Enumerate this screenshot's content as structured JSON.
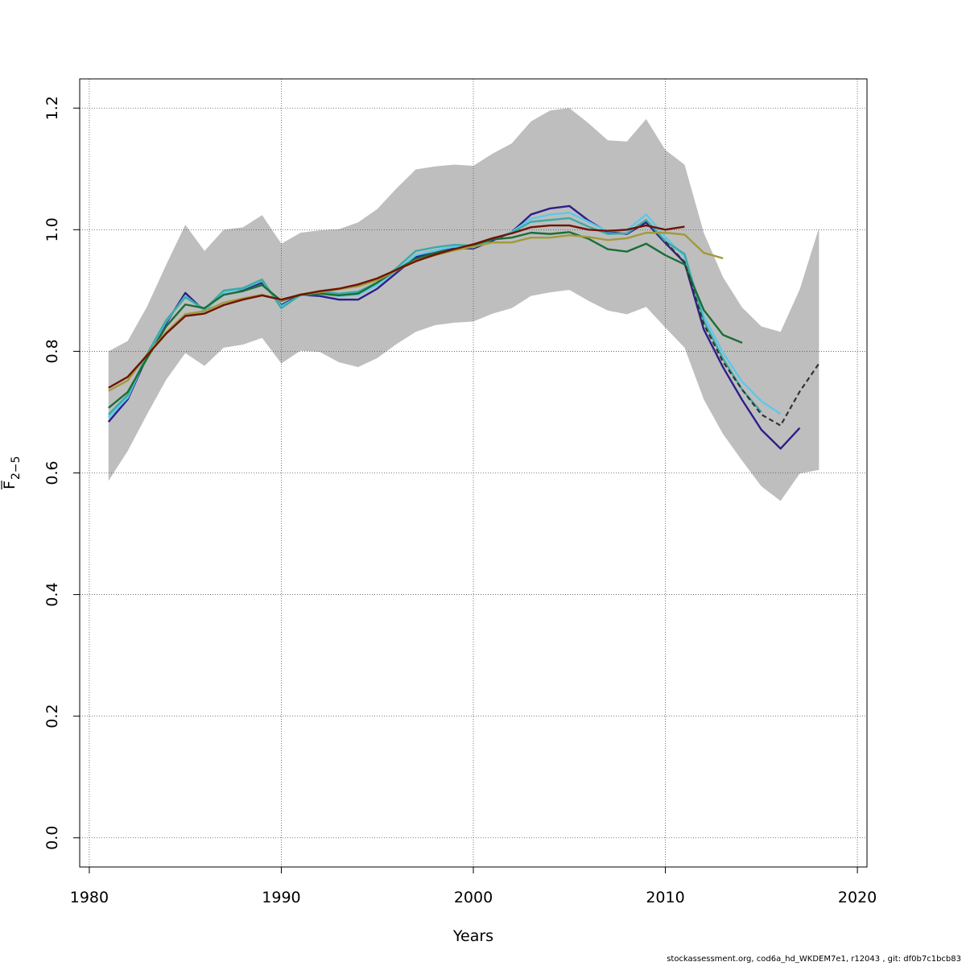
{
  "chart_data": {
    "type": "line",
    "xlabel": "Years",
    "ylabel": "F",
    "ylabel_subscript": "2−5",
    "xlim": [
      1979.5,
      2020.5
    ],
    "ylim": [
      -0.048,
      1.248
    ],
    "x_ticks": [
      1980,
      1990,
      2000,
      2010,
      2020
    ],
    "y_ticks": [
      0.0,
      0.2,
      0.4,
      0.6,
      0.8,
      1.0,
      1.2
    ],
    "y_tick_labels": [
      "0.0",
      "0.2",
      "0.4",
      "0.6",
      "0.8",
      "1.0",
      "1.2"
    ],
    "grid": true,
    "confidence_band": {
      "color": "#bebebe",
      "x": [
        1981,
        1982,
        1983,
        1984,
        1985,
        1986,
        1987,
        1988,
        1989,
        1990,
        1991,
        1992,
        1993,
        1994,
        1995,
        1996,
        1997,
        1998,
        1999,
        2000,
        2001,
        2002,
        2003,
        2004,
        2005,
        2006,
        2007,
        2008,
        2009,
        2010,
        2011,
        2012,
        2013,
        2014,
        2015,
        2016,
        2017,
        2018
      ],
      "upper": [
        0.8,
        0.817,
        0.873,
        0.942,
        1.008,
        0.965,
        1.0,
        1.004,
        1.024,
        0.977,
        0.995,
        0.999,
        1.001,
        1.012,
        1.034,
        1.068,
        1.099,
        1.104,
        1.107,
        1.105,
        1.125,
        1.142,
        1.178,
        1.196,
        1.2,
        1.175,
        1.147,
        1.145,
        1.182,
        1.131,
        1.107,
        0.995,
        0.922,
        0.872,
        0.841,
        0.832,
        0.902,
        1.003
      ],
      "lower": [
        0.587,
        0.636,
        0.696,
        0.753,
        0.797,
        0.776,
        0.806,
        0.811,
        0.822,
        0.78,
        0.801,
        0.799,
        0.782,
        0.774,
        0.789,
        0.812,
        0.832,
        0.843,
        0.847,
        0.849,
        0.862,
        0.871,
        0.891,
        0.897,
        0.901,
        0.883,
        0.867,
        0.861,
        0.873,
        0.839,
        0.806,
        0.721,
        0.664,
        0.62,
        0.578,
        0.554,
        0.599,
        0.605
      ]
    },
    "series": [
      {
        "color": "#2c1f8a",
        "x": [
          1981,
          1982,
          1983,
          1984,
          1985,
          1986,
          1987,
          1988,
          1989,
          1990,
          1991,
          1992,
          1993,
          1994,
          1995,
          1996,
          1997,
          1998,
          1999,
          2000,
          2001,
          2002,
          2003,
          2004,
          2005,
          2006,
          2007,
          2008,
          2009,
          2010,
          2011,
          2012,
          2013,
          2014,
          2015,
          2016,
          2017
        ],
        "values": [
          0.684,
          0.721,
          0.791,
          0.846,
          0.896,
          0.866,
          0.899,
          0.902,
          0.913,
          0.876,
          0.893,
          0.891,
          0.885,
          0.885,
          0.903,
          0.929,
          0.955,
          0.962,
          0.97,
          0.969,
          0.982,
          0.996,
          1.025,
          1.035,
          1.039,
          1.015,
          0.996,
          0.993,
          1.012,
          0.978,
          0.946,
          0.836,
          0.774,
          0.72,
          0.671,
          0.64,
          0.674
        ]
      },
      {
        "color": "#5ec8ea",
        "x": [
          1981,
          1982,
          1983,
          1984,
          1985,
          1986,
          1987,
          1988,
          1989,
          1990,
          1991,
          1992,
          1993,
          1994,
          1995,
          1996,
          1997,
          1998,
          1999,
          2000,
          2001,
          2002,
          2003,
          2004,
          2005,
          2006,
          2007,
          2008,
          2009,
          2010,
          2011,
          2012,
          2013,
          2014,
          2015,
          2016
        ],
        "values": [
          0.691,
          0.724,
          0.793,
          0.849,
          0.891,
          0.867,
          0.897,
          0.903,
          0.916,
          0.874,
          0.892,
          0.895,
          0.891,
          0.893,
          0.909,
          0.933,
          0.958,
          0.966,
          0.972,
          0.971,
          0.984,
          0.996,
          1.018,
          1.025,
          1.028,
          1.013,
          0.997,
          0.999,
          1.025,
          0.988,
          0.956,
          0.858,
          0.798,
          0.75,
          0.718,
          0.697
        ]
      },
      {
        "color": "#3aaba4",
        "x": [
          1981,
          1982,
          1983,
          1984,
          1985,
          1986,
          1987,
          1988,
          1989,
          1990,
          1991,
          1992,
          1993,
          1994,
          1995,
          1996,
          1997,
          1998,
          1999,
          2000,
          2001,
          2002,
          2003,
          2004,
          2005,
          2006,
          2007,
          2008,
          2009,
          2010,
          2011,
          2012,
          2013,
          2014,
          2015
        ],
        "values": [
          0.696,
          0.728,
          0.795,
          0.851,
          0.889,
          0.869,
          0.9,
          0.904,
          0.918,
          0.871,
          0.893,
          0.898,
          0.895,
          0.898,
          0.913,
          0.937,
          0.965,
          0.971,
          0.975,
          0.974,
          0.985,
          0.995,
          1.013,
          1.016,
          1.019,
          1.005,
          0.993,
          0.994,
          1.016,
          0.981,
          0.96,
          0.85,
          0.788,
          0.737,
          0.7
        ]
      },
      {
        "color": "#1a6e36",
        "x": [
          1981,
          1982,
          1983,
          1984,
          1985,
          1986,
          1987,
          1988,
          1989,
          1990,
          1991,
          1992,
          1993,
          1994,
          1995,
          1996,
          1997,
          1998,
          1999,
          2000,
          2001,
          2002,
          2003,
          2004,
          2005,
          2006,
          2007,
          2008,
          2009,
          2010,
          2011,
          2012,
          2013,
          2014
        ],
        "values": [
          0.707,
          0.733,
          0.788,
          0.841,
          0.877,
          0.871,
          0.893,
          0.899,
          0.909,
          0.883,
          0.893,
          0.895,
          0.892,
          0.895,
          0.913,
          0.934,
          0.952,
          0.962,
          0.968,
          0.975,
          0.984,
          0.987,
          0.995,
          0.993,
          0.996,
          0.985,
          0.968,
          0.964,
          0.977,
          0.958,
          0.943,
          0.868,
          0.827,
          0.814
        ]
      },
      {
        "color": "#a19a3a",
        "x": [
          1981,
          1982,
          1983,
          1984,
          1985,
          1986,
          1987,
          1988,
          1989,
          1990,
          1991,
          1992,
          1993,
          1994,
          1995,
          1996,
          1997,
          1998,
          1999,
          2000,
          2001,
          2002,
          2003,
          2004,
          2005,
          2006,
          2007,
          2008,
          2009,
          2010,
          2011,
          2012,
          2013
        ],
        "values": [
          0.735,
          0.752,
          0.795,
          0.831,
          0.861,
          0.866,
          0.88,
          0.887,
          0.893,
          0.884,
          0.894,
          0.897,
          0.902,
          0.907,
          0.917,
          0.933,
          0.949,
          0.958,
          0.966,
          0.972,
          0.979,
          0.979,
          0.987,
          0.987,
          0.991,
          0.988,
          0.983,
          0.986,
          0.995,
          0.995,
          0.992,
          0.962,
          0.953
        ]
      },
      {
        "color": "#701204",
        "x": [
          1981,
          1982,
          1983,
          1984,
          1985,
          1986,
          1987,
          1988,
          1989,
          1990,
          1991,
          1992,
          1993,
          1994,
          1995,
          1996,
          1997,
          1998,
          1999,
          2000,
          2001,
          2002,
          2003,
          2004,
          2005,
          2006,
          2007,
          2008,
          2009,
          2010,
          2011
        ],
        "values": [
          0.74,
          0.758,
          0.793,
          0.829,
          0.858,
          0.862,
          0.876,
          0.885,
          0.892,
          0.885,
          0.893,
          0.899,
          0.903,
          0.91,
          0.92,
          0.934,
          0.948,
          0.959,
          0.968,
          0.976,
          0.986,
          0.994,
          1.004,
          1.007,
          1.007,
          1.0,
          0.998,
          1.0,
          1.007,
          1.0,
          1.005
        ]
      },
      {
        "color": "#333333",
        "dashed": true,
        "x": [
          2010,
          2011,
          2012,
          2013,
          2014,
          2015,
          2016,
          2017,
          2018
        ],
        "values": [
          0.98,
          0.947,
          0.845,
          0.783,
          0.737,
          0.696,
          0.678,
          0.734,
          0.78
        ]
      }
    ]
  },
  "footer": "stockassessment.org, cod6a_hd_WKDEM7e1, r12043 , git: df0b7c1bcb83"
}
